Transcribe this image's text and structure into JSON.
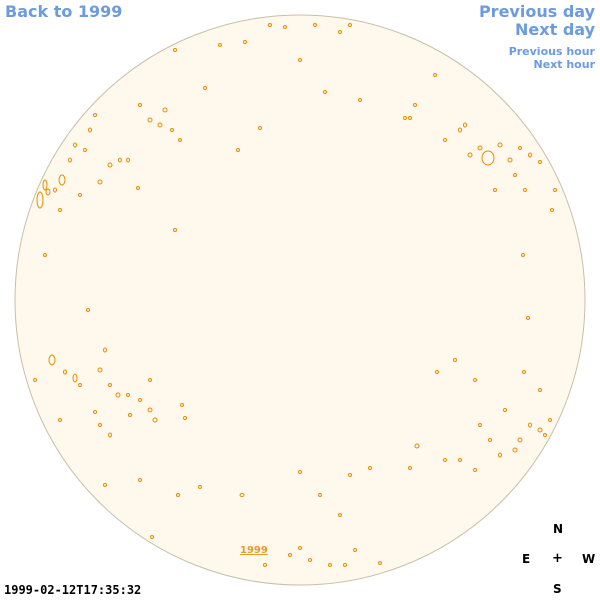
{
  "nav": {
    "back": "Back to 1999",
    "prev_day": "Previous day",
    "next_day": "Next day",
    "prev_hour": "Previous hour",
    "next_hour": "Next hour"
  },
  "compass": {
    "n": "N",
    "e": "E",
    "center": "+",
    "w": "W",
    "s": "S"
  },
  "timestamp": "1999-02-12T17:35:32",
  "year_label": "1999",
  "colors": {
    "link": "#6b9be0",
    "disk_fill": "#fef9ec",
    "disk_edge": "#c8bfa8",
    "region": "#e88c00"
  }
}
